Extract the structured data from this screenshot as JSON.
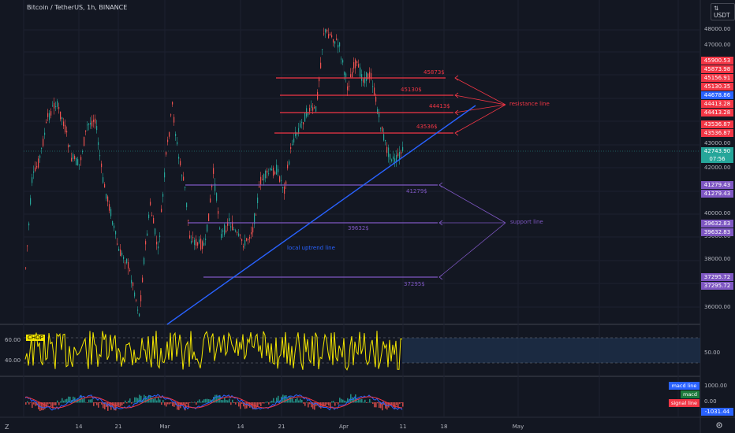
{
  "header": {
    "title": "Bitcoin / TetherUS, 1h, BINANCE",
    "currency_label": "USDT",
    "currency_arrow": "⇅"
  },
  "y_axis": {
    "ticks": [
      "48000.00",
      "47000.00",
      "43000.00",
      "42000.00",
      "40000.00",
      "39000.00",
      "38000.00",
      "36000.00"
    ]
  },
  "x_axis": {
    "ticks": [
      "14",
      "21",
      "Mar",
      "14",
      "21",
      "Apr",
      "11",
      "18",
      "May"
    ]
  },
  "price_labels": [
    {
      "text": "45900.53",
      "color": "#f23645"
    },
    {
      "text": "45873.98",
      "color": "#f23645"
    },
    {
      "text": "45156.91",
      "color": "#f23645"
    },
    {
      "text": "45130.35",
      "color": "#f23645"
    },
    {
      "text": "44678.86",
      "color": "#2962ff"
    },
    {
      "text": "44413.28",
      "color": "#f23645"
    },
    {
      "text": "44413.28",
      "color": "#f23645"
    },
    {
      "text": "43536.87",
      "color": "#f23645"
    },
    {
      "text": "43536.87",
      "color": "#f23645"
    },
    {
      "text": "42743.90",
      "color": "#26a69a"
    },
    {
      "text": "07:56",
      "color": "#26a69a"
    },
    {
      "text": "41279.43",
      "color": "#7e57c2"
    },
    {
      "text": "41279.43",
      "color": "#7e57c2"
    },
    {
      "text": "39632.83",
      "color": "#7e57c2"
    },
    {
      "text": "39632.83",
      "color": "#7e57c2"
    },
    {
      "text": "37295.72",
      "color": "#7e57c2"
    },
    {
      "text": "37295.72",
      "color": "#7e57c2"
    }
  ],
  "annotations": {
    "r1": "45873$",
    "r2": "45130$",
    "r3": "44413$",
    "r4": "43536$",
    "resistance": "resistance line",
    "s1": "41279$",
    "s2": "39632$",
    "s3": "37295$",
    "support": "support line",
    "uptrend": "local uptrend line"
  },
  "chop": {
    "badge": "CHOP",
    "left_ticks": [
      "60.00",
      "40.00"
    ],
    "right_tick": "50.00"
  },
  "macd": {
    "labels": [
      {
        "text": "macd line",
        "color": "#2962ff"
      },
      {
        "text": "macd",
        "color": "#1e7a3c"
      },
      {
        "text": "signal line",
        "color": "#f23645"
      }
    ],
    "right_ticks": [
      "1000.00",
      "0.00",
      "-1031.44"
    ]
  },
  "colors": {
    "up": "#26a69a",
    "down": "#ef5350",
    "resistance": "#f23645",
    "support": "#7e57c2",
    "trend": "#2962ff",
    "chop": "#f3e600"
  },
  "icons": {
    "bottom_left": "Z",
    "settings": "gear-icon",
    "expand": "expand-icon"
  }
}
